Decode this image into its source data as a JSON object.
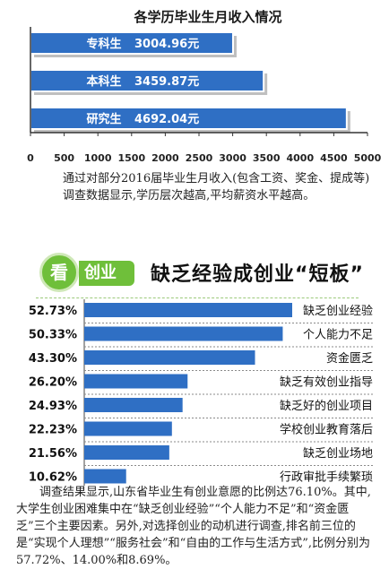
{
  "chart_data": [
    {
      "type": "bar",
      "orientation": "horizontal",
      "title": "各学历毕业生月收入情况",
      "categories": [
        "专科生",
        "本科生",
        "研究生"
      ],
      "values": [
        3004.96,
        3459.87,
        4692.04
      ],
      "value_labels": [
        "3004.96元",
        "3459.87元",
        "4692.04元"
      ],
      "xlim": [
        0,
        5000
      ],
      "xticks": [
        "0",
        "500",
        "1000",
        "1500",
        "2000",
        "2500",
        "3000",
        "3500",
        "4000",
        "4500",
        "5000"
      ],
      "bar_color": "#2f6fc4",
      "grid": false
    },
    {
      "type": "bar",
      "orientation": "horizontal",
      "title": "缺乏经验成创业“短板”",
      "categories": [
        "缺乏创业经验",
        "个人能力不足",
        "资金匮乏",
        "缺乏有效创业指导",
        "缺乏好的创业项目",
        "学校创业教育落后",
        "缺乏创业场地",
        "行政审批手续繁琐"
      ],
      "values": [
        52.73,
        50.33,
        43.3,
        26.2,
        24.93,
        22.23,
        21.56,
        10.62
      ],
      "value_labels": [
        "52.73%",
        "50.33%",
        "43.30%",
        "26.20%",
        "24.93%",
        "22.23%",
        "21.56%",
        "10.62%"
      ],
      "bar_color": "#2f6fc4",
      "grid": false
    }
  ],
  "header2": {
    "badge": "看",
    "tab": "创业"
  },
  "notes": {
    "chart1": "通过对部分2016届毕业生月收入(包含工资、奖金、提成等)调查数据显示,学历层次越高,平均薪资水平越高。",
    "chart2": "调查结果显示,山东省毕业生有创业意愿的比例达76.10%。其中,大学生创业困难集中在“缺乏创业经验”“个人能力不足”和“资金匮乏”三个主要因素。另外,对选择创业的动机进行调查,排名前三位的是“实现个人理想”“服务社会”和“自由的工作与生活方式”,比例分别为57.72%、14.00%和8.69%。"
  }
}
